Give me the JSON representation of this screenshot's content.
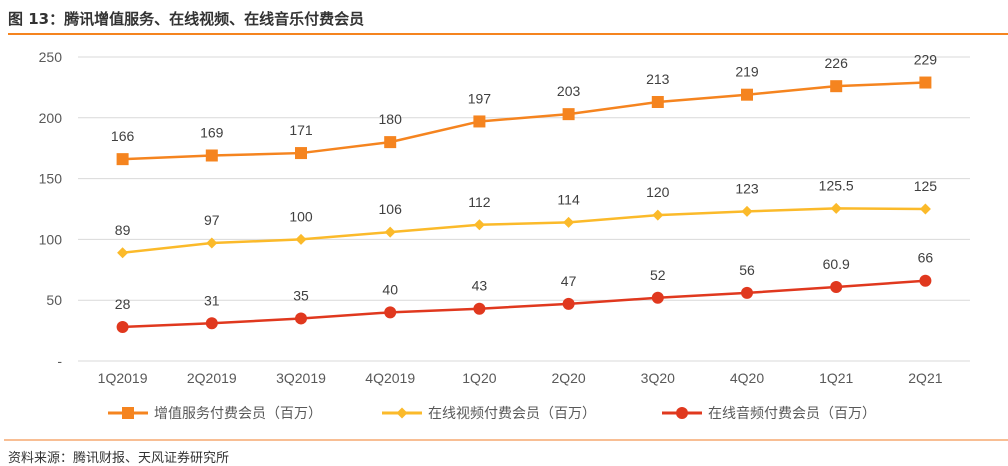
{
  "title": "图 13：腾讯增值服务、在线视频、在线音乐付费会员",
  "source": "资料来源：腾讯财报、天风证券研究所",
  "chart_data": {
    "type": "line",
    "title": "图 13：腾讯增值服务、在线视频、在线音乐付费会员",
    "xlabel": "",
    "ylabel": "",
    "categories": [
      "1Q2019",
      "2Q2019",
      "3Q2019",
      "4Q2019",
      "1Q20",
      "2Q20",
      "3Q20",
      "4Q20",
      "1Q21",
      "2Q21"
    ],
    "ylim": [
      0,
      250
    ],
    "yticks": [
      0,
      50,
      100,
      150,
      200,
      250
    ],
    "ytick_labels": [
      "-",
      "50",
      "100",
      "150",
      "200",
      "250"
    ],
    "grid": true,
    "legend_position": "bottom",
    "series": [
      {
        "name": "增值服务付费会员（百万）",
        "color": "#F5841F",
        "marker": "square",
        "values": [
          166,
          169,
          171,
          180,
          197,
          203,
          213,
          219,
          226,
          229
        ],
        "labels": [
          "166",
          "169",
          "171",
          "180",
          "197",
          "203",
          "213",
          "219",
          "226",
          "229"
        ]
      },
      {
        "name": "在线视频付费会员（百万）",
        "color": "#FBBA2A",
        "marker": "diamond",
        "values": [
          89,
          97,
          100,
          106,
          112,
          114,
          120,
          123,
          125.5,
          125
        ],
        "labels": [
          "89",
          "97",
          "100",
          "106",
          "112",
          "114",
          "120",
          "123",
          "125.5",
          "125"
        ]
      },
      {
        "name": "在线音频付费会员（百万）",
        "color": "#E0381E",
        "marker": "circle",
        "values": [
          28,
          31,
          35,
          40,
          43,
          47,
          52,
          56,
          60.9,
          66
        ],
        "labels": [
          "28",
          "31",
          "35",
          "40",
          "43",
          "47",
          "52",
          "56",
          "60.9",
          "66"
        ]
      }
    ]
  }
}
